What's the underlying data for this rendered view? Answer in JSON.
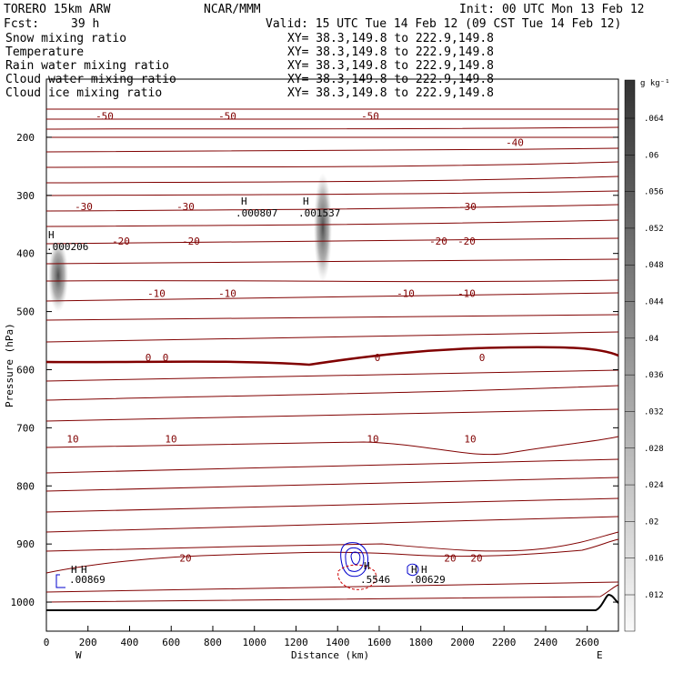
{
  "header": {
    "model": "TORERO 15km ARW",
    "center": "NCAR/MMM",
    "init": "Init: 00 UTC Mon 13 Feb 12",
    "fcst_label": "Fcst:",
    "fcst_value": "39 h",
    "valid": "Valid: 15 UTC Tue 14 Feb 12 (09 CST Tue 14 Feb 12)"
  },
  "fields": [
    {
      "name": "Snow mixing ratio",
      "xy": "XY=  38.3,149.8 to 222.9,149.8",
      "color": "#000000"
    },
    {
      "name": "Temperature",
      "xy": "XY=  38.3,149.8 to 222.9,149.8",
      "color": "#aa0000"
    },
    {
      "name": "Rain water mixing ratio",
      "xy": "XY=  38.3,149.8 to 222.9,149.8",
      "color": "#cc0000"
    },
    {
      "name": "Cloud water mixing ratio",
      "xy": "XY=  38.3,149.8 to 222.9,149.8",
      "color": "#0000cc"
    },
    {
      "name": "Cloud ice mixing ratio",
      "xy": "XY=  38.3,149.8 to 222.9,149.8",
      "color": "#000000"
    }
  ],
  "colorbar": {
    "unit": "g kg⁻¹",
    "ticks": [
      ".064",
      ".06",
      ".056",
      ".052",
      ".048",
      ".044",
      ".04",
      ".036",
      ".032",
      ".028",
      ".024",
      ".02",
      ".016",
      ".012"
    ]
  },
  "annotations": {
    "west": "W",
    "east": "E",
    "max_labels": [
      {
        "letter": "H",
        "value": ".000206"
      },
      {
        "letter": "H",
        "value": ".000807"
      },
      {
        "letter": "H",
        "value": ".001537"
      }
    ],
    "sfc_labels": [
      ".00869",
      ".5546",
      ".00629"
    ]
  },
  "colors": {
    "temperature": "#800000",
    "freezing_line": "#800000",
    "cloud_water": "#0000cc",
    "rain": "#cc0000",
    "terrain": "#000000",
    "snow_shade": "#555555"
  },
  "chart_data": {
    "type": "cross-section contour",
    "xlabel": "Distance (km)",
    "ylabel": "Pressure (hPa)",
    "xlim": [
      0,
      2750
    ],
    "ylim": [
      1050,
      100
    ],
    "x_ticks": [
      "0",
      "200",
      "400",
      "600",
      "800",
      "1000",
      "1200",
      "1400",
      "1600",
      "1800",
      "2000",
      "2200",
      "2400",
      "2600"
    ],
    "y_ticks": [
      "200",
      "300",
      "400",
      "500",
      "600",
      "700",
      "800",
      "900",
      "1000"
    ],
    "temperature_contours": [
      {
        "label": "-50",
        "pressure": 170
      },
      {
        "label": "-40",
        "pressure": 215
      },
      {
        "label": "-30",
        "pressure": 325
      },
      {
        "label": "-20",
        "pressure": 385
      },
      {
        "label": "-10",
        "pressure": 475
      },
      {
        "label": "0",
        "pressure": 585
      },
      {
        "label": "10",
        "pressure": 725
      },
      {
        "label": "20",
        "pressure": 930
      }
    ],
    "snow_maxima": [
      {
        "x": 60,
        "p": 390
      },
      {
        "x": 1340,
        "p": 335
      }
    ]
  }
}
